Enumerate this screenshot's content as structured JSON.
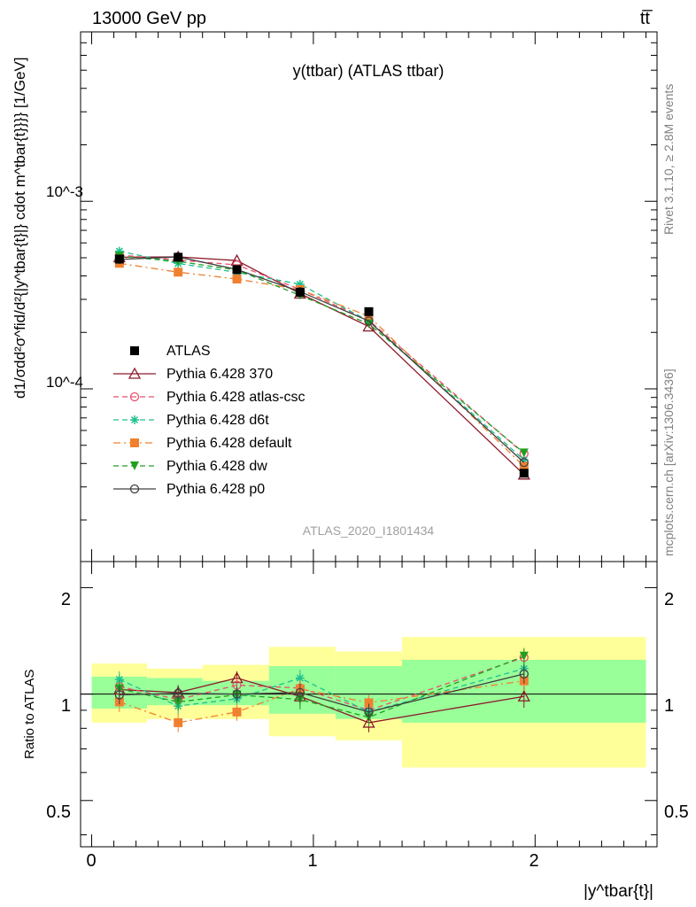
{
  "header": {
    "energy_label": "13000 GeV pp",
    "process_label": "tt̅"
  },
  "main": {
    "plot_title": "y(ttbar) (ATLAS ttbar)",
    "y_axis_label": "d1/σdd²σ^fid/d²{|y^tbar{t}|} cdot m^tbar{t}}}} [1/GeV]",
    "y_tick_labels": [
      "10^-3",
      "10^-4"
    ],
    "watermark": "ATLAS_2020_I1801434"
  },
  "ratio": {
    "y_axis_label": "Ratio to ATLAS",
    "y_tick_labels": [
      "2",
      "1",
      "0.5"
    ],
    "x_tick_labels": [
      "0",
      "1",
      "2"
    ],
    "x_axis_label": "|y^tbar{t}|"
  },
  "side": {
    "rivet_label": "Rivet 3.1.10, ≥ 2.8M events",
    "mcplots_label": "mcplots.cern.ch [arXiv:1306.3436]"
  },
  "legend": {
    "items": [
      {
        "label": "ATLAS",
        "color": "#000000",
        "marker": "square-filled",
        "dash": "none"
      },
      {
        "label": "Pythia 6.428 370",
        "color": "#8b1a2a",
        "marker": "triangle-open",
        "dash": "solid"
      },
      {
        "label": "Pythia 6.428 atlas-csc",
        "color": "#e8506e",
        "marker": "circle-open",
        "dash": "dashed"
      },
      {
        "label": "Pythia 6.428 d6t",
        "color": "#20c090",
        "marker": "star",
        "dash": "dashed"
      },
      {
        "label": "Pythia 6.428 default",
        "color": "#f08030",
        "marker": "square-filled",
        "dash": "dashdot"
      },
      {
        "label": "Pythia 6.428 dw",
        "color": "#20a020",
        "marker": "triangle-down-filled",
        "dash": "dashed"
      },
      {
        "label": "Pythia 6.428 p0",
        "color": "#404040",
        "marker": "circle-open",
        "dash": "solid"
      }
    ]
  },
  "chart_data": {
    "type": "line",
    "x_scale": "linear",
    "y_scale": "log",
    "xlim": [
      -0.05,
      2.55
    ],
    "ylim": [
      1.2e-05,
      0.008
    ],
    "ratio_ylim": [
      0.37,
      2.37
    ],
    "bins": [
      [
        0,
        0.25
      ],
      [
        0.25,
        0.5
      ],
      [
        0.5,
        0.8
      ],
      [
        0.8,
        1.1
      ],
      [
        1.1,
        1.4
      ],
      [
        1.4,
        2.5
      ]
    ],
    "x": [
      0.125,
      0.39,
      0.655,
      0.94,
      1.25,
      1.95
    ],
    "atlas": {
      "values": [
        0.000492,
        0.000503,
        0.000432,
        0.000327,
        0.000258,
        3.55e-05
      ],
      "errors": [
        1.2e-05,
        1e-05,
        1e-05,
        8e-06,
        7e-06,
        1.5e-06
      ],
      "band_green": [
        [
          0.91,
          1.12
        ],
        [
          0.93,
          1.11
        ],
        [
          0.93,
          1.09
        ],
        [
          0.88,
          1.2
        ],
        [
          0.85,
          1.2
        ],
        [
          0.83,
          1.25
        ]
      ],
      "band_yellow": [
        [
          0.83,
          1.22
        ],
        [
          0.85,
          1.18
        ],
        [
          0.85,
          1.21
        ],
        [
          0.76,
          1.36
        ],
        [
          0.74,
          1.32
        ],
        [
          0.62,
          1.45
        ]
      ]
    },
    "series": [
      {
        "name": "Pythia 6.428 370",
        "values": [
          0.000503,
          0.000505,
          0.000483,
          0.000322,
          0.000215,
          3.49e-05
        ],
        "ratio": [
          1.03,
          1.01,
          1.11,
          0.985,
          0.83,
          0.985
        ],
        "ratio_err": [
          0.06,
          0.05,
          0.05,
          0.06,
          0.05,
          0.07
        ]
      },
      {
        "name": "Pythia 6.428 atlas-csc",
        "values": [
          0.000517,
          0.000486,
          0.000458,
          0.000339,
          0.000232,
          4.51e-05
        ],
        "ratio": [
          1.05,
          0.965,
          1.06,
          1.04,
          0.9,
          1.27
        ],
        "ratio_err": [
          0.06,
          0.05,
          0.05,
          0.06,
          0.05,
          0.07
        ]
      },
      {
        "name": "Pythia 6.428 d6t",
        "values": [
          0.000542,
          0.000466,
          0.000418,
          0.000361,
          0.00023,
          4.18e-05
        ],
        "ratio": [
          1.1,
          0.925,
          0.97,
          1.11,
          0.89,
          1.18
        ],
        "ratio_err": [
          0.06,
          0.05,
          0.05,
          0.06,
          0.05,
          0.07
        ]
      },
      {
        "name": "Pythia 6.428 default",
        "values": [
          0.000467,
          0.000419,
          0.000385,
          0.000338,
          0.000244,
          3.86e-05
        ],
        "ratio": [
          0.95,
          0.83,
          0.89,
          1.035,
          0.945,
          1.09
        ],
        "ratio_err": [
          0.06,
          0.05,
          0.05,
          0.06,
          0.05,
          0.07
        ]
      },
      {
        "name": "Pythia 6.428 dw",
        "values": [
          0.000509,
          0.000478,
          0.00043,
          0.000315,
          0.000222,
          4.55e-05
        ],
        "ratio": [
          1.035,
          0.95,
          0.995,
          0.965,
          0.86,
          1.28
        ],
        "ratio_err": [
          0.06,
          0.05,
          0.05,
          0.06,
          0.05,
          0.07
        ]
      },
      {
        "name": "Pythia 6.428 p0",
        "values": [
          0.00049,
          0.000505,
          0.000433,
          0.00033,
          0.00023,
          4.05e-05
        ],
        "ratio": [
          0.995,
          1.005,
          1.0,
          1.01,
          0.89,
          1.14
        ],
        "ratio_err": [
          0.06,
          0.05,
          0.05,
          0.06,
          0.05,
          0.07
        ]
      }
    ]
  }
}
